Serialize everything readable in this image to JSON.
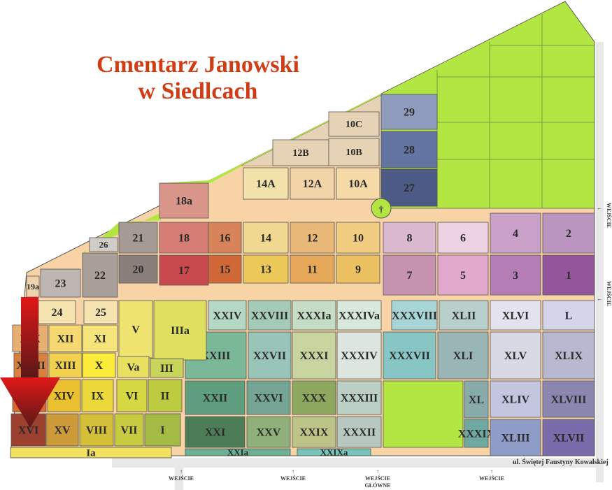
{
  "title": {
    "line1": "Cmentarz Janowski",
    "line2": "w Siedlcach"
  },
  "colors": {
    "title": "#d23c14",
    "road": "#f8d3a5",
    "green": "#b3e543",
    "arrow": "#b01818"
  },
  "entrances": {
    "e1": "WEJŚCIE",
    "e2": "WEJŚCIE",
    "main_line1": "WEJŚCIE",
    "main_line2": "GŁÓWNE",
    "e4": "WEJŚCIE",
    "right1": "WEJŚCIE",
    "right2": "WEJŚCIE"
  },
  "street": "ul. Świętej Faustyny Kowalskiej",
  "marker": {
    "icon": "down-arrow-icon"
  },
  "sections": [
    {
      "label": "29",
      "color": "#8e9bbd"
    },
    {
      "label": "28",
      "color": "#6474a0"
    },
    {
      "label": "27",
      "color": "#4d5a85"
    },
    {
      "label": "10C",
      "color": "#e6d3b5"
    },
    {
      "label": "12B",
      "color": "#e6d3b5"
    },
    {
      "label": "10B",
      "color": "#e6d3b5"
    },
    {
      "label": "14A",
      "color": "#f3e2ab"
    },
    {
      "label": "12A",
      "color": "#f2d4a8"
    },
    {
      "label": "10A",
      "color": "#f5daa8"
    },
    {
      "label": "18a",
      "color": "#d9958a"
    },
    {
      "label": "18",
      "color": "#d67e76"
    },
    {
      "label": "17",
      "color": "#c94a4e"
    },
    {
      "label": "21",
      "color": "#a59a94"
    },
    {
      "label": "20",
      "color": "#8a7f7a"
    },
    {
      "label": "22",
      "color": "#a99e98"
    },
    {
      "label": "23",
      "color": "#bdb6b2"
    },
    {
      "label": "26",
      "color": "#d0ccc8"
    },
    {
      "label": "19a",
      "color": "#efd3ad"
    },
    {
      "label": "16",
      "color": "#d8845a"
    },
    {
      "label": "14",
      "color": "#f0d890"
    },
    {
      "label": "12",
      "color": "#e8b878"
    },
    {
      "label": "10",
      "color": "#f0cd80"
    },
    {
      "label": "15",
      "color": "#d06838"
    },
    {
      "label": "13",
      "color": "#ecc858"
    },
    {
      "label": "11",
      "color": "#e4a858"
    },
    {
      "label": "9",
      "color": "#ebc060"
    },
    {
      "label": "8",
      "color": "#d9b8d0"
    },
    {
      "label": "6",
      "color": "#ecd2e3"
    },
    {
      "label": "7",
      "color": "#c592b0"
    },
    {
      "label": "5",
      "color": "#e3a9cd"
    },
    {
      "label": "4",
      "color": "#c8a0c8"
    },
    {
      "label": "2",
      "color": "#b995c0"
    },
    {
      "label": "3",
      "color": "#b57db5"
    },
    {
      "label": "1",
      "color": "#93569a"
    },
    {
      "label": "XXIV",
      "color": "#b5d7c6"
    },
    {
      "label": "XXVIII",
      "color": "#a5cbb8"
    },
    {
      "label": "XXXIa",
      "color": "#c5dcc5"
    },
    {
      "label": "XXXIVa",
      "color": "#d8e8dc"
    },
    {
      "label": "XXXVIII",
      "color": "#a8d5d5"
    },
    {
      "label": "XLII",
      "color": "#b8cfcc"
    },
    {
      "label": "XLVI",
      "color": "#e4e2ee"
    },
    {
      "label": "L",
      "color": "#d6d4ea"
    },
    {
      "label": "XXIII",
      "color": "#7ab898"
    },
    {
      "label": "XXVII",
      "color": "#98c5b8"
    },
    {
      "label": "XXXI",
      "color": "#c8d5a0"
    },
    {
      "label": "XXXIV",
      "color": "#dde5e0"
    },
    {
      "label": "XXXVII",
      "color": "#88c5c5"
    },
    {
      "label": "XLI",
      "color": "#9ab5b5"
    },
    {
      "label": "XLV",
      "color": "#d9d9e6"
    },
    {
      "label": "XLIX",
      "color": "#b8b9d0"
    },
    {
      "label": "XXII",
      "color": "#5e9e7e"
    },
    {
      "label": "XXVI",
      "color": "#74a594"
    },
    {
      "label": "XXX",
      "color": "#8fa860"
    },
    {
      "label": "XXXIII",
      "color": "#bccfc4"
    },
    {
      "label": "XL",
      "color": "#88aaa8"
    },
    {
      "label": "XLIV",
      "color": "#c4c6e0"
    },
    {
      "label": "XLVIII",
      "color": "#8b87b0"
    },
    {
      "label": "XXI",
      "color": "#4d7d58"
    },
    {
      "label": "XXV",
      "color": "#8fb07a"
    },
    {
      "label": "XXIX",
      "color": "#bdc488"
    },
    {
      "label": "XXXII",
      "color": "#b8c8c0"
    },
    {
      "label": "XXXIX",
      "color": "#6fa8a0"
    },
    {
      "label": "XLIII",
      "color": "#8f9cc8"
    },
    {
      "label": "XLVII",
      "color": "#7a6bab"
    },
    {
      "label": "XXIa",
      "color": "#6bb092"
    },
    {
      "label": "XXIXa",
      "color": "#79c4b8"
    },
    {
      "label": "24",
      "color": "#f5e4b0"
    },
    {
      "label": "25",
      "color": "#f5e4b0"
    },
    {
      "label": "XIX",
      "color": "#e8b070"
    },
    {
      "label": "XII",
      "color": "#f5d870"
    },
    {
      "label": "XI",
      "color": "#f4e47a"
    },
    {
      "label": "V",
      "color": "#f0e470"
    },
    {
      "label": "IIIa",
      "color": "#dfe060"
    },
    {
      "label": "XVIII",
      "color": "#d88040"
    },
    {
      "label": "XIII",
      "color": "#f2d050"
    },
    {
      "label": "X",
      "color": "#fbeb3a"
    },
    {
      "label": "Va",
      "color": "#e8e060"
    },
    {
      "label": "III",
      "color": "#c8d45a"
    },
    {
      "label": "XVII",
      "color": "#d86a30"
    },
    {
      "label": "XIV",
      "color": "#eac030"
    },
    {
      "label": "IX",
      "color": "#ebd83a"
    },
    {
      "label": "VI",
      "color": "#d6d843"
    },
    {
      "label": "II",
      "color": "#bccb40"
    },
    {
      "label": "XVI",
      "color": "#9c4030"
    },
    {
      "label": "XV",
      "color": "#cc9a38"
    },
    {
      "label": "VIII",
      "color": "#d4c038"
    },
    {
      "label": "VII",
      "color": "#c6cb40"
    },
    {
      "label": "I",
      "color": "#a3bb45"
    },
    {
      "label": "Ia",
      "color": "#f2e060"
    }
  ]
}
